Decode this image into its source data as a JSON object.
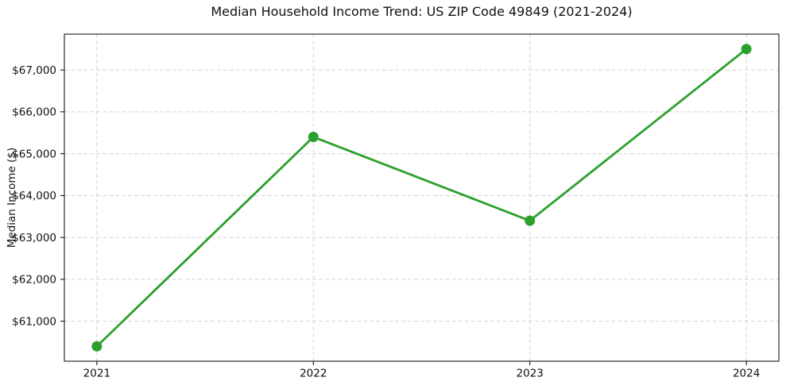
{
  "chart_data": {
    "type": "line",
    "title": "Median Household Income Trend: US ZIP Code 49849 (2021-2024)",
    "xlabel": "",
    "ylabel": "Median Income ($)",
    "x": [
      2021,
      2022,
      2023,
      2024
    ],
    "values": [
      60400,
      65400,
      63400,
      67500
    ],
    "xlim": [
      2020.85,
      2024.15
    ],
    "ylim": [
      60045,
      67855
    ],
    "xticks": [
      {
        "value": 2021,
        "label": "2021"
      },
      {
        "value": 2022,
        "label": "2022"
      },
      {
        "value": 2023,
        "label": "2023"
      },
      {
        "value": 2024,
        "label": "2024"
      }
    ],
    "yticks": [
      {
        "value": 61000,
        "label": "$61,000"
      },
      {
        "value": 62000,
        "label": "$62,000"
      },
      {
        "value": 63000,
        "label": "$63,000"
      },
      {
        "value": 64000,
        "label": "$64,000"
      },
      {
        "value": 65000,
        "label": "$65,000"
      },
      {
        "value": 66000,
        "label": "$66,000"
      },
      {
        "value": 67000,
        "label": "$67,000"
      }
    ],
    "grid": {
      "show": true,
      "style": "dashed",
      "color": "#d4d4d4"
    },
    "legend_position": "none",
    "line_color": "#2ca02c",
    "marker_color": "#2ca02c",
    "axes_color": "#000000",
    "text_color": "#111111",
    "background_color": "#ffffff"
  }
}
